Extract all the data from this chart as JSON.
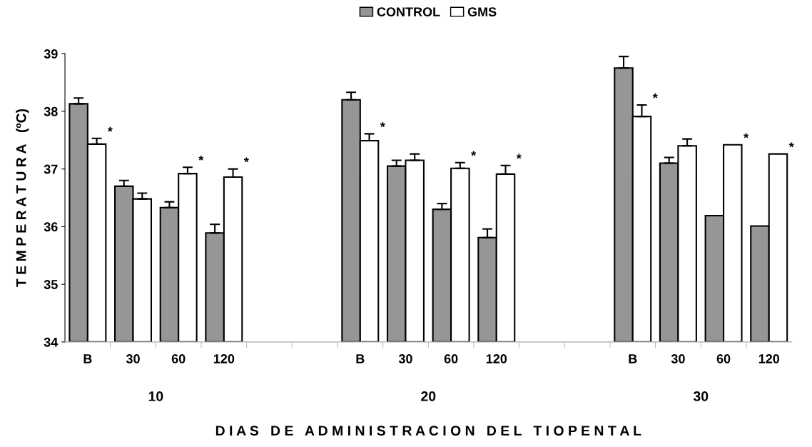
{
  "chart_data": {
    "type": "bar",
    "xlabel": "D I A S   D E   A D M I N I S T R A C I O N   D E L   T I O P E N T A L",
    "ylabel": "T E M P E R A T U R A   (ºC)",
    "categories": [
      "B",
      "30",
      "60",
      "120",
      null,
      null,
      "B",
      "30",
      "60",
      "120",
      null,
      null,
      "B",
      "30",
      "60",
      "120"
    ],
    "series": [
      {
        "name": "CONTROL",
        "color": "#969696",
        "values": [
          38.13,
          36.7,
          36.33,
          35.89,
          null,
          null,
          38.2,
          37.05,
          36.3,
          35.81,
          null,
          null,
          38.75,
          37.1,
          36.19,
          36.01
        ],
        "errors": [
          [
            38.13,
            38.23
          ],
          [
            36.7,
            36.8
          ],
          [
            36.33,
            36.43
          ],
          [
            35.89,
            36.04
          ],
          null,
          null,
          [
            38.2,
            38.33
          ],
          [
            37.05,
            37.15
          ],
          [
            36.3,
            36.4
          ],
          [
            35.81,
            35.96
          ],
          null,
          null,
          [
            38.75,
            38.95
          ],
          [
            37.1,
            37.2
          ],
          null,
          null
        ]
      },
      {
        "name": "GMS",
        "color": "#ffffff",
        "values": [
          37.43,
          36.48,
          36.92,
          36.86,
          null,
          null,
          37.49,
          37.15,
          37.01,
          36.91,
          null,
          null,
          37.91,
          37.4,
          37.42,
          37.26
        ],
        "errors": [
          [
            37.43,
            37.53
          ],
          [
            36.48,
            36.58
          ],
          [
            36.92,
            37.03
          ],
          [
            36.86,
            37.0
          ],
          null,
          null,
          [
            37.49,
            37.61
          ],
          [
            37.15,
            37.26
          ],
          [
            37.01,
            37.11
          ],
          [
            36.91,
            37.06
          ],
          null,
          null,
          [
            37.91,
            38.11
          ],
          [
            37.4,
            37.52
          ],
          null,
          null
        ],
        "value_labels": [
          "*",
          null,
          "*",
          "*",
          null,
          null,
          "*",
          null,
          "*",
          "*",
          null,
          null,
          "*",
          null,
          "*",
          "*"
        ]
      }
    ],
    "annotations": [
      "10",
      "20",
      "30"
    ],
    "ylim": [
      34,
      39
    ],
    "yticks": [
      34,
      35,
      36,
      37,
      38,
      39
    ],
    "grid": false,
    "legend": "top"
  }
}
